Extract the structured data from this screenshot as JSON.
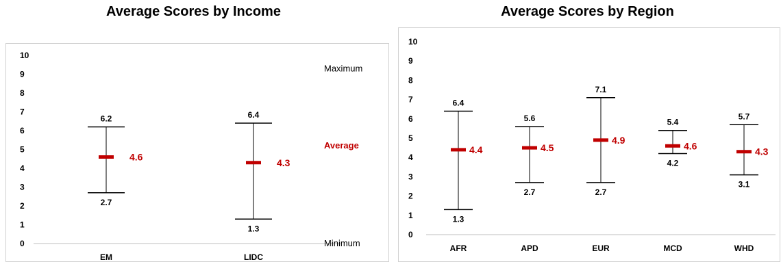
{
  "charts": [
    {
      "id": "income",
      "title": "Average Scores by Income",
      "chart_data": {
        "type": "range",
        "categories": [
          "EM",
          "LIDC"
        ],
        "max": [
          6.2,
          6.4
        ],
        "avg": [
          4.6,
          4.3
        ],
        "min": [
          2.7,
          1.3
        ],
        "ylim": [
          0,
          10
        ],
        "yticks": [
          "0",
          "1",
          "2",
          "3",
          "4",
          "5",
          "6",
          "7",
          "8",
          "9",
          "10"
        ],
        "legend": {
          "maximum": "Maximum",
          "average": "Average",
          "minimum": "Minimum"
        }
      }
    },
    {
      "id": "region",
      "title": "Average Scores by Region",
      "chart_data": {
        "type": "range",
        "categories": [
          "AFR",
          "APD",
          "EUR",
          "MCD",
          "WHD"
        ],
        "max": [
          6.4,
          5.6,
          7.1,
          5.4,
          5.7
        ],
        "avg": [
          4.4,
          4.5,
          4.9,
          4.6,
          4.3
        ],
        "min": [
          1.3,
          2.7,
          2.7,
          4.2,
          3.1
        ],
        "ylim": [
          0,
          10
        ],
        "yticks": [
          "0",
          "1",
          "2",
          "3",
          "4",
          "5",
          "6",
          "7",
          "8",
          "9",
          "10"
        ]
      }
    }
  ],
  "colors": {
    "average": "#c00000",
    "line": "#000000",
    "axis": "#bfbfbf"
  }
}
